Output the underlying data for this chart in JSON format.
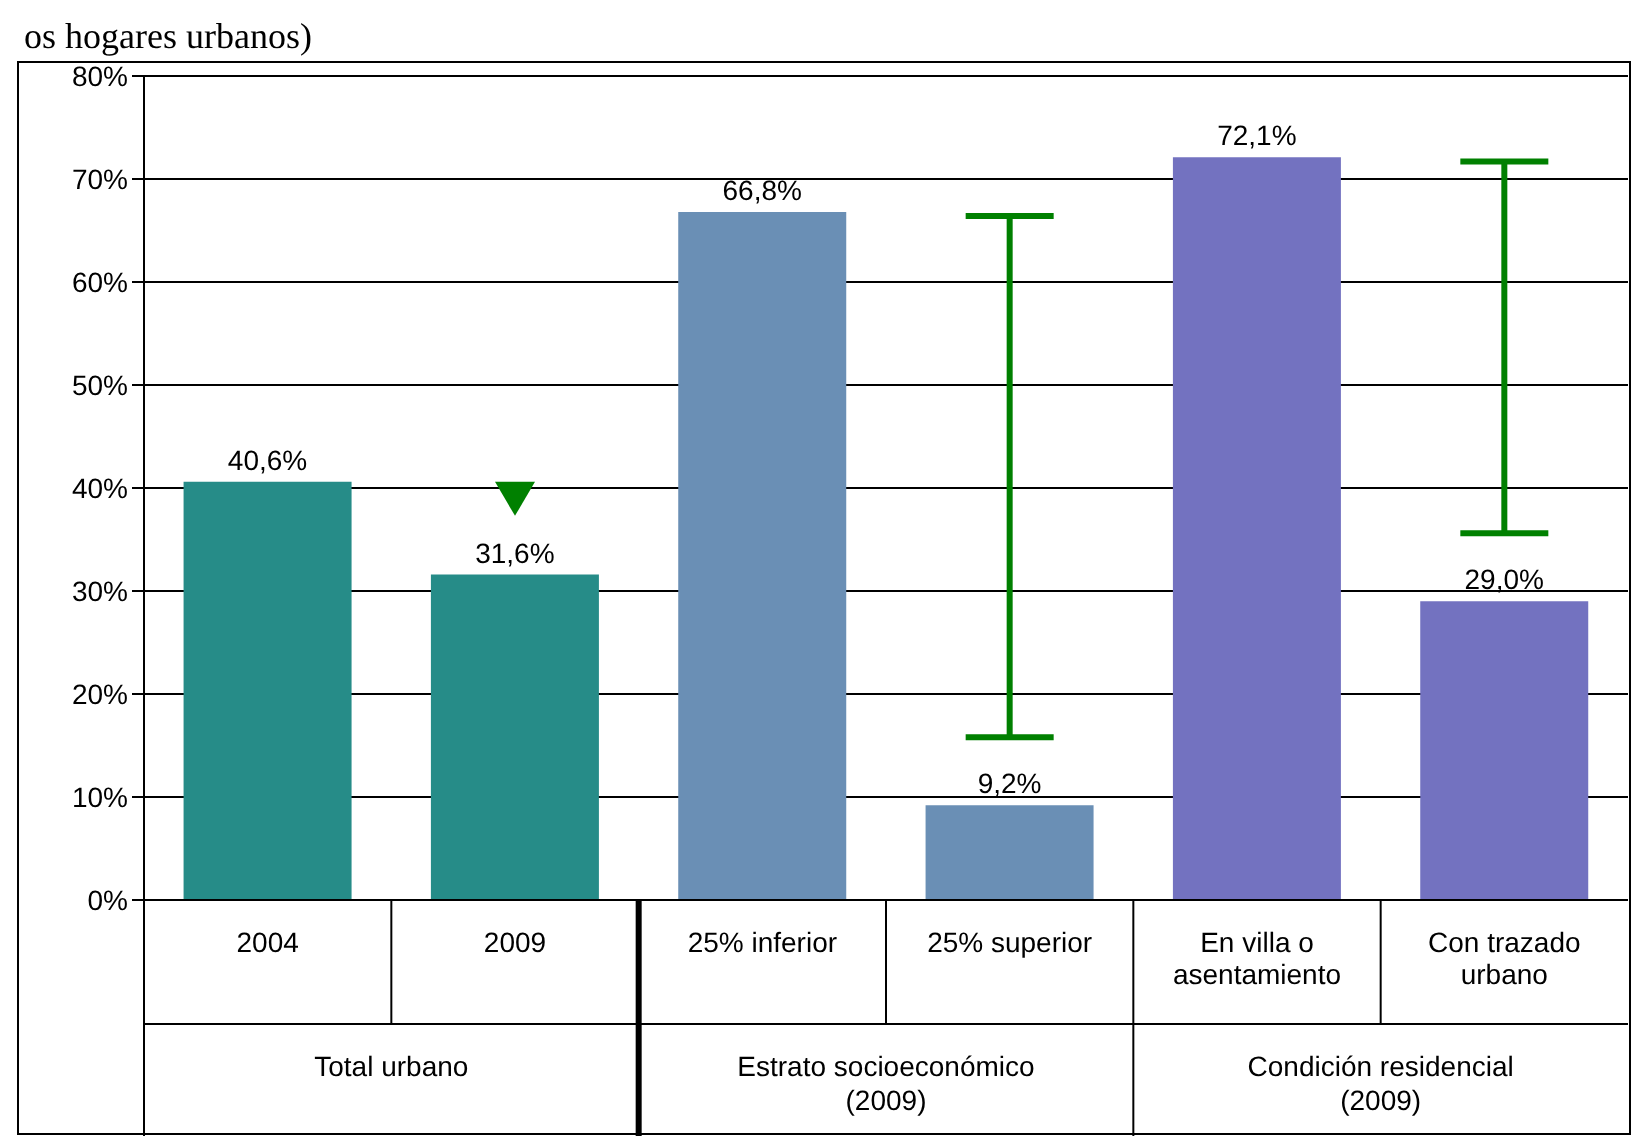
{
  "chart_data": {
    "type": "bar",
    "title": "os hogares urbanos)",
    "categories": [
      "2004",
      "2009",
      "25% inferior",
      "25% superior",
      "En villa o asentamiento",
      "Con trazado urbano"
    ],
    "values": [
      40.6,
      31.6,
      66.8,
      9.2,
      72.1,
      29.0
    ],
    "value_labels": [
      "40,6%",
      "31,6%",
      "66,8%",
      "9,2%",
      "72,1%",
      "29,0%"
    ],
    "colors": [
      "#268c88",
      "#268c88",
      "#6a8fb5",
      "#6a8fb5",
      "#7372c0",
      "#7372c0"
    ],
    "ylim": [
      0,
      80
    ],
    "yticks": [
      {
        "value": 0,
        "label": "0%"
      },
      {
        "value": 10,
        "label": "10%"
      },
      {
        "value": 20,
        "label": "20%"
      },
      {
        "value": 30,
        "label": "30%"
      },
      {
        "value": 40,
        "label": "40%"
      },
      {
        "value": 50,
        "label": "50%"
      },
      {
        "value": 60,
        "label": "60%"
      },
      {
        "value": 70,
        "label": "70%"
      },
      {
        "value": 80,
        "label": "80%"
      }
    ],
    "grid": "y",
    "annotations": [
      "Total urbano",
      "Estrato socioeconómico (2009)",
      "Condición residencial (2009)"
    ]
  }
}
